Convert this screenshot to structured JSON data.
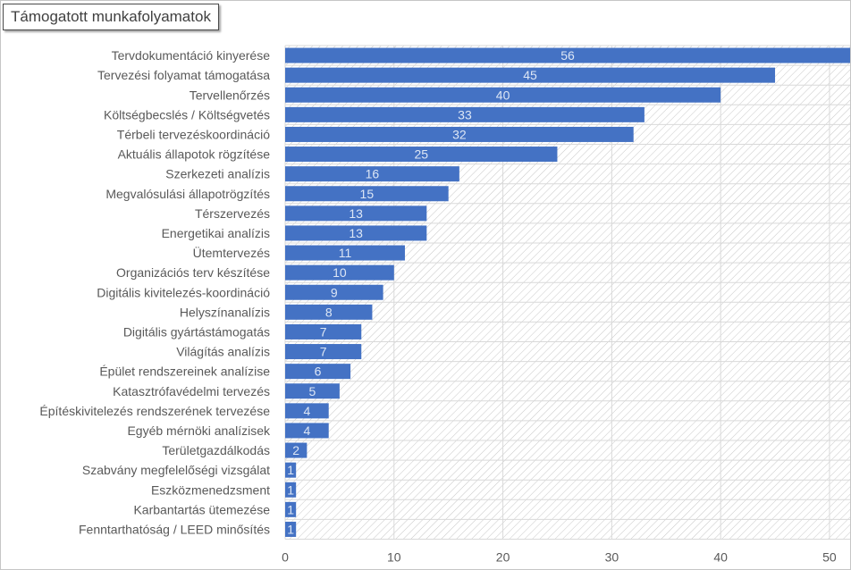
{
  "chart_data": {
    "type": "bar",
    "orientation": "horizontal",
    "title": "Támogatott munkafolyamatok",
    "categories": [
      "Tervdokumentáció kinyerése",
      "Tervezési folyamat támogatása",
      "Tervellenőrzés",
      "Költségbecslés / Költségvetés",
      "Térbeli tervezéskoordináció",
      "Aktuális állapotok rögzítése",
      "Szerkezeti analízis",
      "Megvalósulási állapotrögzítés",
      "Térszervezés",
      "Energetikai analízis",
      "Ütemtervezés",
      "Organizációs terv készítése",
      "Digitális kivitelezés-koordináció",
      "Helyszínanalízis",
      "Digitális gyártástámogatás",
      "Világítás analízis",
      "Épület rendszereinek analízise",
      "Katasztrófavédelmi tervezés",
      "Építéskivitelezés rendszerének tervezése",
      "Egyéb mérnöki analízisek",
      "Területgazdálkodás",
      "Szabvány megfelelőségi vizsgálat",
      "Eszközmenedzsment",
      "Karbantartás ütemezése",
      "Fenntarthatóság / LEED minősítés"
    ],
    "values": [
      56,
      45,
      40,
      33,
      32,
      25,
      16,
      15,
      13,
      13,
      11,
      10,
      9,
      8,
      7,
      7,
      6,
      5,
      4,
      4,
      2,
      1,
      1,
      1,
      1
    ],
    "x_ticks": [
      "0",
      "10",
      "20",
      "30",
      "40",
      "50"
    ],
    "xlim": [
      0,
      56
    ],
    "grid": true,
    "legend": "none",
    "colors": {
      "bar": "#4472c4",
      "bar_label": "#dce6f5",
      "gridline": "#d9d9d9",
      "hatch": "#c8c8c8",
      "text": "#595959"
    }
  }
}
